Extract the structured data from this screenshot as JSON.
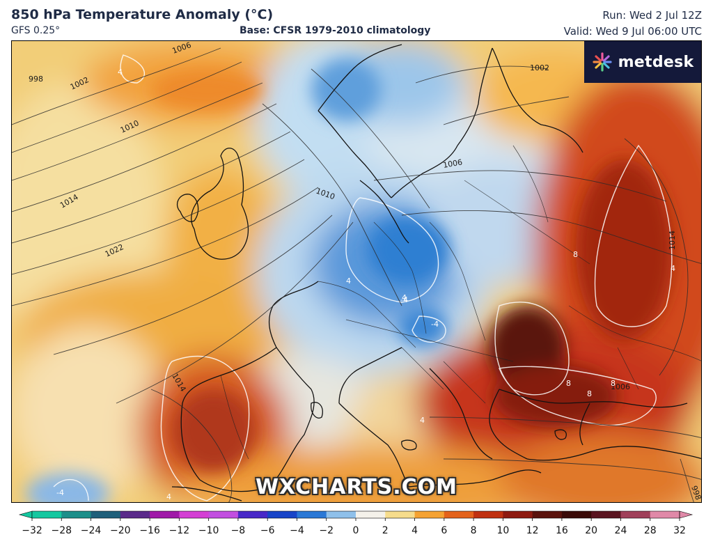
{
  "header": {
    "title": "850 hPa Temperature Anomaly (°C)",
    "model": "GFS 0.25°",
    "base": "Base: CFSR 1979-2010 climatology",
    "run": "Run: Wed 2 Jul 12Z",
    "valid": "Valid: Wed 9 Jul 06:00 UTC"
  },
  "logo": {
    "text": "metdesk",
    "icon": "metdesk-sparkle-icon"
  },
  "watermark": "WXCHARTS.COM",
  "colorbar": {
    "ticks": [
      "−32",
      "−28",
      "−24",
      "−20",
      "−16",
      "−12",
      "−10",
      "−8",
      "−6",
      "−4",
      "−2",
      "0",
      "2",
      "4",
      "6",
      "8",
      "10",
      "12",
      "16",
      "20",
      "24",
      "28",
      "32"
    ],
    "colors": [
      "#14c8a0",
      "#1d8f8a",
      "#1f5f7a",
      "#5a2a8a",
      "#a01aa8",
      "#d43fd4",
      "#c24fe0",
      "#4828c8",
      "#1844c8",
      "#2a78d6",
      "#8fc0ea",
      "#f4f1ea",
      "#f6dc8c",
      "#f5a232",
      "#e4621b",
      "#c03010",
      "#8e1a10",
      "#5a120c",
      "#3a0a08",
      "#5a1420",
      "#a0405a",
      "#e089a8"
    ]
  },
  "isobar_labels": [
    "998",
    "1002",
    "1006",
    "1010",
    "1014",
    "1022",
    "1006",
    "1010",
    "1002",
    "1014",
    "1006",
    "1014",
    "998"
  ],
  "anomaly_labels": [
    "4",
    "4",
    "4",
    "-4",
    "-4",
    "8",
    "8",
    "8",
    "8",
    "4",
    "-4",
    "4",
    "4"
  ]
}
